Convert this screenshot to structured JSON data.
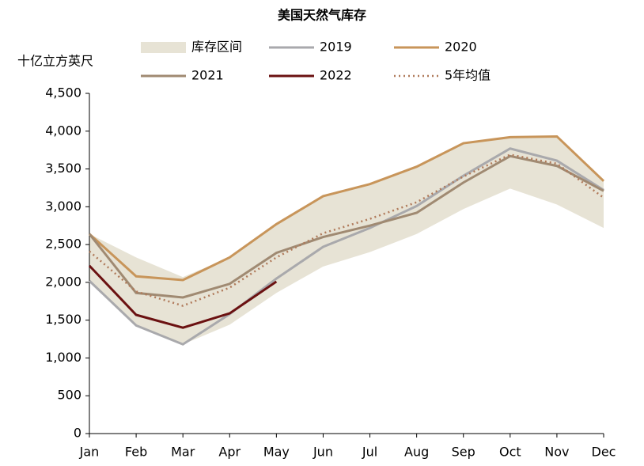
{
  "chart_data": {
    "type": "line",
    "title": "美国天然气库存",
    "y_label": "十亿立方英尺",
    "categories": [
      "Jan",
      "Feb",
      "Mar",
      "Apr",
      "May",
      "Jun",
      "Jul",
      "Aug",
      "Sep",
      "Oct",
      "Nov",
      "Dec"
    ],
    "band": {
      "name": "库存区间",
      "color": "#e7e3d5",
      "upper": [
        2640,
        2330,
        2070,
        2330,
        2770,
        3140,
        3300,
        3530,
        3840,
        3920,
        3930,
        3340
      ],
      "lower": [
        2020,
        1430,
        1180,
        1440,
        1860,
        2210,
        2400,
        2640,
        2970,
        3240,
        3030,
        2720
      ]
    },
    "series": [
      {
        "name": "2019",
        "color": "#a9a9ac",
        "values": [
          2020,
          1430,
          1180,
          1580,
          2050,
          2470,
          2720,
          3010,
          3410,
          3770,
          3610,
          3220
        ]
      },
      {
        "name": "2020",
        "color": "#c8955a",
        "values": [
          2640,
          2080,
          2030,
          2330,
          2770,
          3140,
          3300,
          3530,
          3840,
          3920,
          3930,
          3340
        ]
      },
      {
        "name": "2021",
        "color": "#a08a72",
        "values": [
          2640,
          1860,
          1800,
          1980,
          2390,
          2600,
          2750,
          2920,
          3320,
          3670,
          3540,
          3210
        ]
      },
      {
        "name": "2022",
        "color": "#6b1111",
        "values": [
          2220,
          1570,
          1400,
          1590,
          2010,
          null,
          null,
          null,
          null,
          null,
          null,
          null
        ]
      },
      {
        "name": "5年均值",
        "color": "#b07a5a",
        "dashed": true,
        "values": [
          2410,
          1880,
          1690,
          1930,
          2330,
          2650,
          2840,
          3060,
          3400,
          3690,
          3570,
          3120
        ]
      }
    ],
    "ylim": [
      0,
      4500
    ],
    "yticks": [
      0,
      500,
      {
        "value": 1000,
        "label": "1,000"
      },
      {
        "value": 1500,
        "label": "1,500"
      },
      {
        "value": 2000,
        "label": "2,000"
      },
      {
        "value": 2500,
        "label": "2,500"
      },
      {
        "value": 3000,
        "label": "3,000"
      },
      {
        "value": 3500,
        "label": "3,500"
      },
      {
        "value": 4000,
        "label": "4,000"
      },
      {
        "value": 4500,
        "label": "4,500"
      }
    ],
    "grid": false
  }
}
